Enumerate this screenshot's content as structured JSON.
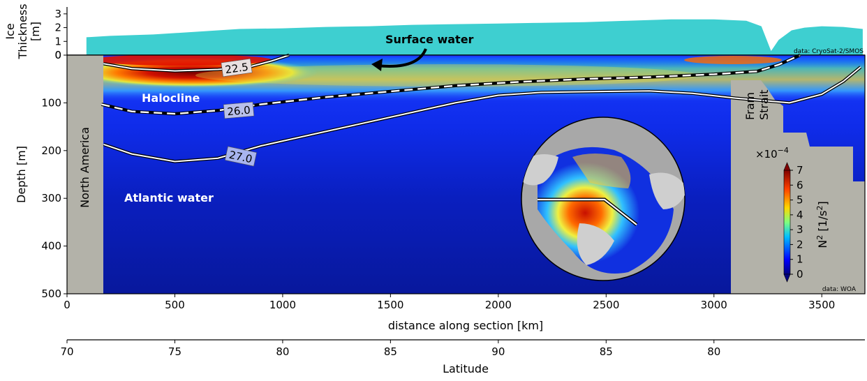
{
  "chart_data": [
    {
      "type": "area",
      "panel": "ice-thickness",
      "ylabel": "Ice Thickness [m]",
      "ylabel_lines": [
        "Ice",
        "Thickness",
        "[m]"
      ],
      "ylim": [
        0,
        3.5
      ],
      "yticks": [
        "0",
        "1",
        "2",
        "3"
      ],
      "ytick_values": [
        0,
        1,
        2,
        3
      ],
      "source": "data: CryoSat-2/SMOS",
      "color": "#3ecfd0",
      "x": [
        90,
        200,
        400,
        600,
        800,
        1000,
        1200,
        1400,
        1600,
        1800,
        2000,
        2200,
        2400,
        2600,
        2800,
        3000,
        3150,
        3220,
        3265,
        3300,
        3360,
        3420,
        3500,
        3600,
        3690
      ],
      "y": [
        1.3,
        1.4,
        1.5,
        1.7,
        1.9,
        1.95,
        2.05,
        2.1,
        2.2,
        2.25,
        2.3,
        2.35,
        2.4,
        2.5,
        2.6,
        2.6,
        2.5,
        2.1,
        0.3,
        1.1,
        1.8,
        2.0,
        2.1,
        2.05,
        1.9
      ]
    },
    {
      "type": "heatmap",
      "panel": "stratification-section",
      "xlabel": "distance along section [km]",
      "ylabel": "Depth [m]",
      "xlim": [
        0,
        3700
      ],
      "ylim": [
        500,
        0
      ],
      "xticks": [
        "0",
        "500",
        "1000",
        "1500",
        "2000",
        "2500",
        "3000",
        "3500"
      ],
      "xtick_values": [
        0,
        500,
        1000,
        1500,
        2000,
        2500,
        3000,
        3500
      ],
      "yticks": [
        "0",
        "100",
        "200",
        "300",
        "400",
        "500"
      ],
      "ytick_values": [
        0,
        100,
        200,
        300,
        400,
        500
      ],
      "secondary_xlabel": "Latitude",
      "secondary_xticks": [
        "70",
        "75",
        "80",
        "85",
        "90",
        "85",
        "80"
      ],
      "secondary_xtick_distances": [
        0,
        500,
        1000,
        1500,
        2000,
        2500,
        3000
      ],
      "source": "data: WOA",
      "colorbar": {
        "label": "N² [1/s²]",
        "label_base": "N",
        "label_sup": "2",
        "label_units": " [1/s",
        "label_units_sup": "2",
        "label_end": "]",
        "multiplier": "×10",
        "multiplier_exp": "−4",
        "ticks": [
          "0",
          "1",
          "2",
          "3",
          "4",
          "5",
          "6",
          "7"
        ],
        "tick_values": [
          0,
          1,
          2,
          3,
          4,
          5,
          6,
          7
        ],
        "range": [
          0,
          7
        ]
      },
      "region_labels": {
        "surface_water": "Surface water",
        "halocline": "Halocline",
        "atlantic_water": "Atlantic water",
        "north_america": "North America",
        "fram_strait_line1": "Fram",
        "fram_strait_line2": "Strait"
      },
      "isopycnals": [
        {
          "label": "22.5",
          "style": "solid",
          "x": [
            170,
            300,
            500,
            700,
            850,
            950,
            1030
          ],
          "depth": [
            18,
            28,
            33,
            30,
            24,
            12,
            0
          ]
        },
        {
          "label": "26.0",
          "style": "dashed",
          "x": [
            160,
            300,
            500,
            700,
            900,
            1200,
            1500,
            1800,
            2100,
            2400,
            2700,
            3000,
            3200,
            3300,
            3400
          ],
          "depth": [
            103,
            118,
            123,
            116,
            103,
            88,
            76,
            64,
            56,
            50,
            46,
            40,
            34,
            20,
            0
          ]
        },
        {
          "label": "27.0",
          "style": "solid",
          "x": [
            170,
            300,
            500,
            700,
            900,
            1200,
            1500,
            1800,
            2000,
            2200,
            2500,
            2700,
            2900,
            3100,
            3350,
            3500,
            3600,
            3680
          ],
          "depth": [
            187,
            207,
            223,
            216,
            190,
            160,
            130,
            100,
            84,
            78,
            76,
            75,
            80,
            90,
            100,
            82,
            55,
            25
          ]
        }
      ]
    }
  ]
}
